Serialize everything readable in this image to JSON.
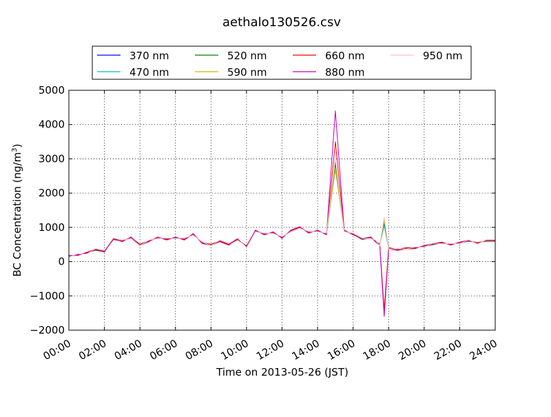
{
  "chart_data": {
    "type": "line",
    "title": "aethalo130526.csv",
    "xlabel": "Time on 2013-05-26 (JST)",
    "ylabel_main": "BC Concentration (ng/m",
    "ylabel_sup": "3",
    "ylabel_close": ")",
    "xlim": [
      "00:00",
      "24:00"
    ],
    "ylim": [
      -2000,
      5000
    ],
    "grid": true,
    "legend_position": "top-center",
    "x_ticks": [
      "00:00",
      "02:00",
      "04:00",
      "06:00",
      "08:00",
      "10:00",
      "12:00",
      "14:00",
      "16:00",
      "18:00",
      "20:00",
      "22:00",
      "24:00"
    ],
    "y_ticks": [
      -2000,
      -1000,
      0,
      1000,
      2000,
      3000,
      4000,
      5000
    ],
    "y_tick_labels": [
      "−2000",
      "−1000",
      "0",
      "1000",
      "2000",
      "3000",
      "4000",
      "5000"
    ],
    "x": [
      "00:00",
      "00:30",
      "01:00",
      "01:30",
      "02:00",
      "02:30",
      "03:00",
      "03:30",
      "04:00",
      "04:30",
      "05:00",
      "05:30",
      "06:00",
      "06:30",
      "07:00",
      "07:30",
      "08:00",
      "08:30",
      "09:00",
      "09:30",
      "10:00",
      "10:30",
      "11:00",
      "11:30",
      "12:00",
      "12:30",
      "13:00",
      "13:30",
      "14:00",
      "14:30",
      "15:00",
      "15:30",
      "16:00",
      "16:30",
      "17:00",
      "17:15",
      "17:30",
      "17:45",
      "18:00",
      "18:30",
      "19:00",
      "19:30",
      "20:00",
      "20:30",
      "21:00",
      "21:30",
      "22:00",
      "22:30",
      "23:00",
      "23:30",
      "24:00"
    ],
    "series": [
      {
        "name": "370 nm",
        "color": "#0000ff",
        "values": [
          150,
          200,
          250,
          350,
          300,
          650,
          600,
          700,
          500,
          600,
          700,
          650,
          700,
          650,
          800,
          550,
          500,
          600,
          500,
          650,
          450,
          900,
          800,
          850,
          700,
          900,
          1000,
          850,
          900,
          800,
          2800,
          900,
          800,
          650,
          700,
          600,
          500,
          1100,
          400,
          350,
          400,
          400,
          450,
          500,
          550,
          500,
          550,
          600,
          550,
          600,
          600
        ]
      },
      {
        "name": "470 nm",
        "color": "#00bfbf",
        "values": [
          160,
          210,
          240,
          340,
          310,
          640,
          610,
          690,
          510,
          610,
          690,
          660,
          690,
          660,
          790,
          560,
          510,
          610,
          510,
          640,
          460,
          890,
          810,
          840,
          710,
          890,
          990,
          860,
          890,
          810,
          2700,
          890,
          810,
          640,
          690,
          610,
          510,
          1050,
          410,
          360,
          410,
          410,
          440,
          490,
          540,
          510,
          540,
          590,
          560,
          590,
          590
        ]
      },
      {
        "name": "520 nm",
        "color": "#008000",
        "values": [
          170,
          190,
          260,
          330,
          290,
          660,
          590,
          710,
          490,
          590,
          710,
          640,
          710,
          640,
          810,
          540,
          490,
          590,
          490,
          660,
          440,
          910,
          790,
          860,
          690,
          910,
          1010,
          840,
          910,
          790,
          2900,
          910,
          790,
          660,
          710,
          590,
          490,
          1150,
          390,
          340,
          390,
          390,
          460,
          510,
          560,
          490,
          560,
          610,
          540,
          610,
          610
        ]
      },
      {
        "name": "590 nm",
        "color": "#bfbf00",
        "values": [
          140,
          220,
          230,
          360,
          320,
          670,
          620,
          680,
          480,
          620,
          680,
          670,
          680,
          670,
          780,
          570,
          480,
          620,
          520,
          670,
          430,
          880,
          820,
          830,
          720,
          880,
          980,
          870,
          880,
          820,
          2750,
          880,
          820,
          670,
          680,
          620,
          480,
          1200,
          380,
          370,
          380,
          420,
          430,
          520,
          530,
          520,
          530,
          620,
          530,
          620,
          620
        ]
      },
      {
        "name": "660 nm",
        "color": "#ff0000",
        "values": [
          155,
          205,
          245,
          345,
          305,
          645,
          605,
          705,
          505,
          605,
          705,
          655,
          705,
          655,
          805,
          555,
          505,
          605,
          505,
          645,
          455,
          905,
          805,
          845,
          705,
          905,
          1005,
          855,
          905,
          805,
          3500,
          905,
          805,
          655,
          705,
          605,
          505,
          -1400,
          405,
          355,
          405,
          405,
          455,
          505,
          555,
          505,
          555,
          605,
          555,
          605,
          605
        ]
      },
      {
        "name": "880 nm",
        "color": "#bf00bf",
        "values": [
          180,
          180,
          270,
          370,
          280,
          680,
          580,
          720,
          470,
          580,
          720,
          630,
          720,
          630,
          820,
          530,
          470,
          580,
          480,
          680,
          420,
          920,
          780,
          870,
          680,
          920,
          1020,
          830,
          920,
          780,
          4400,
          920,
          780,
          680,
          720,
          580,
          470,
          -1600,
          370,
          330,
          370,
          380,
          470,
          530,
          570,
          480,
          570,
          630,
          520,
          630,
          630
        ]
      },
      {
        "name": "950 nm",
        "color": "#ffc0cb",
        "values": [
          130,
          230,
          220,
          380,
          330,
          690,
          630,
          670,
          460,
          630,
          670,
          690,
          670,
          690,
          770,
          580,
          460,
          630,
          530,
          690,
          410,
          870,
          830,
          820,
          730,
          870,
          970,
          880,
          870,
          830,
          3000,
          870,
          830,
          690,
          670,
          630,
          460,
          1300,
          360,
          380,
          360,
          430,
          420,
          540,
          520,
          530,
          520,
          640,
          510,
          640,
          640
        ]
      }
    ]
  }
}
